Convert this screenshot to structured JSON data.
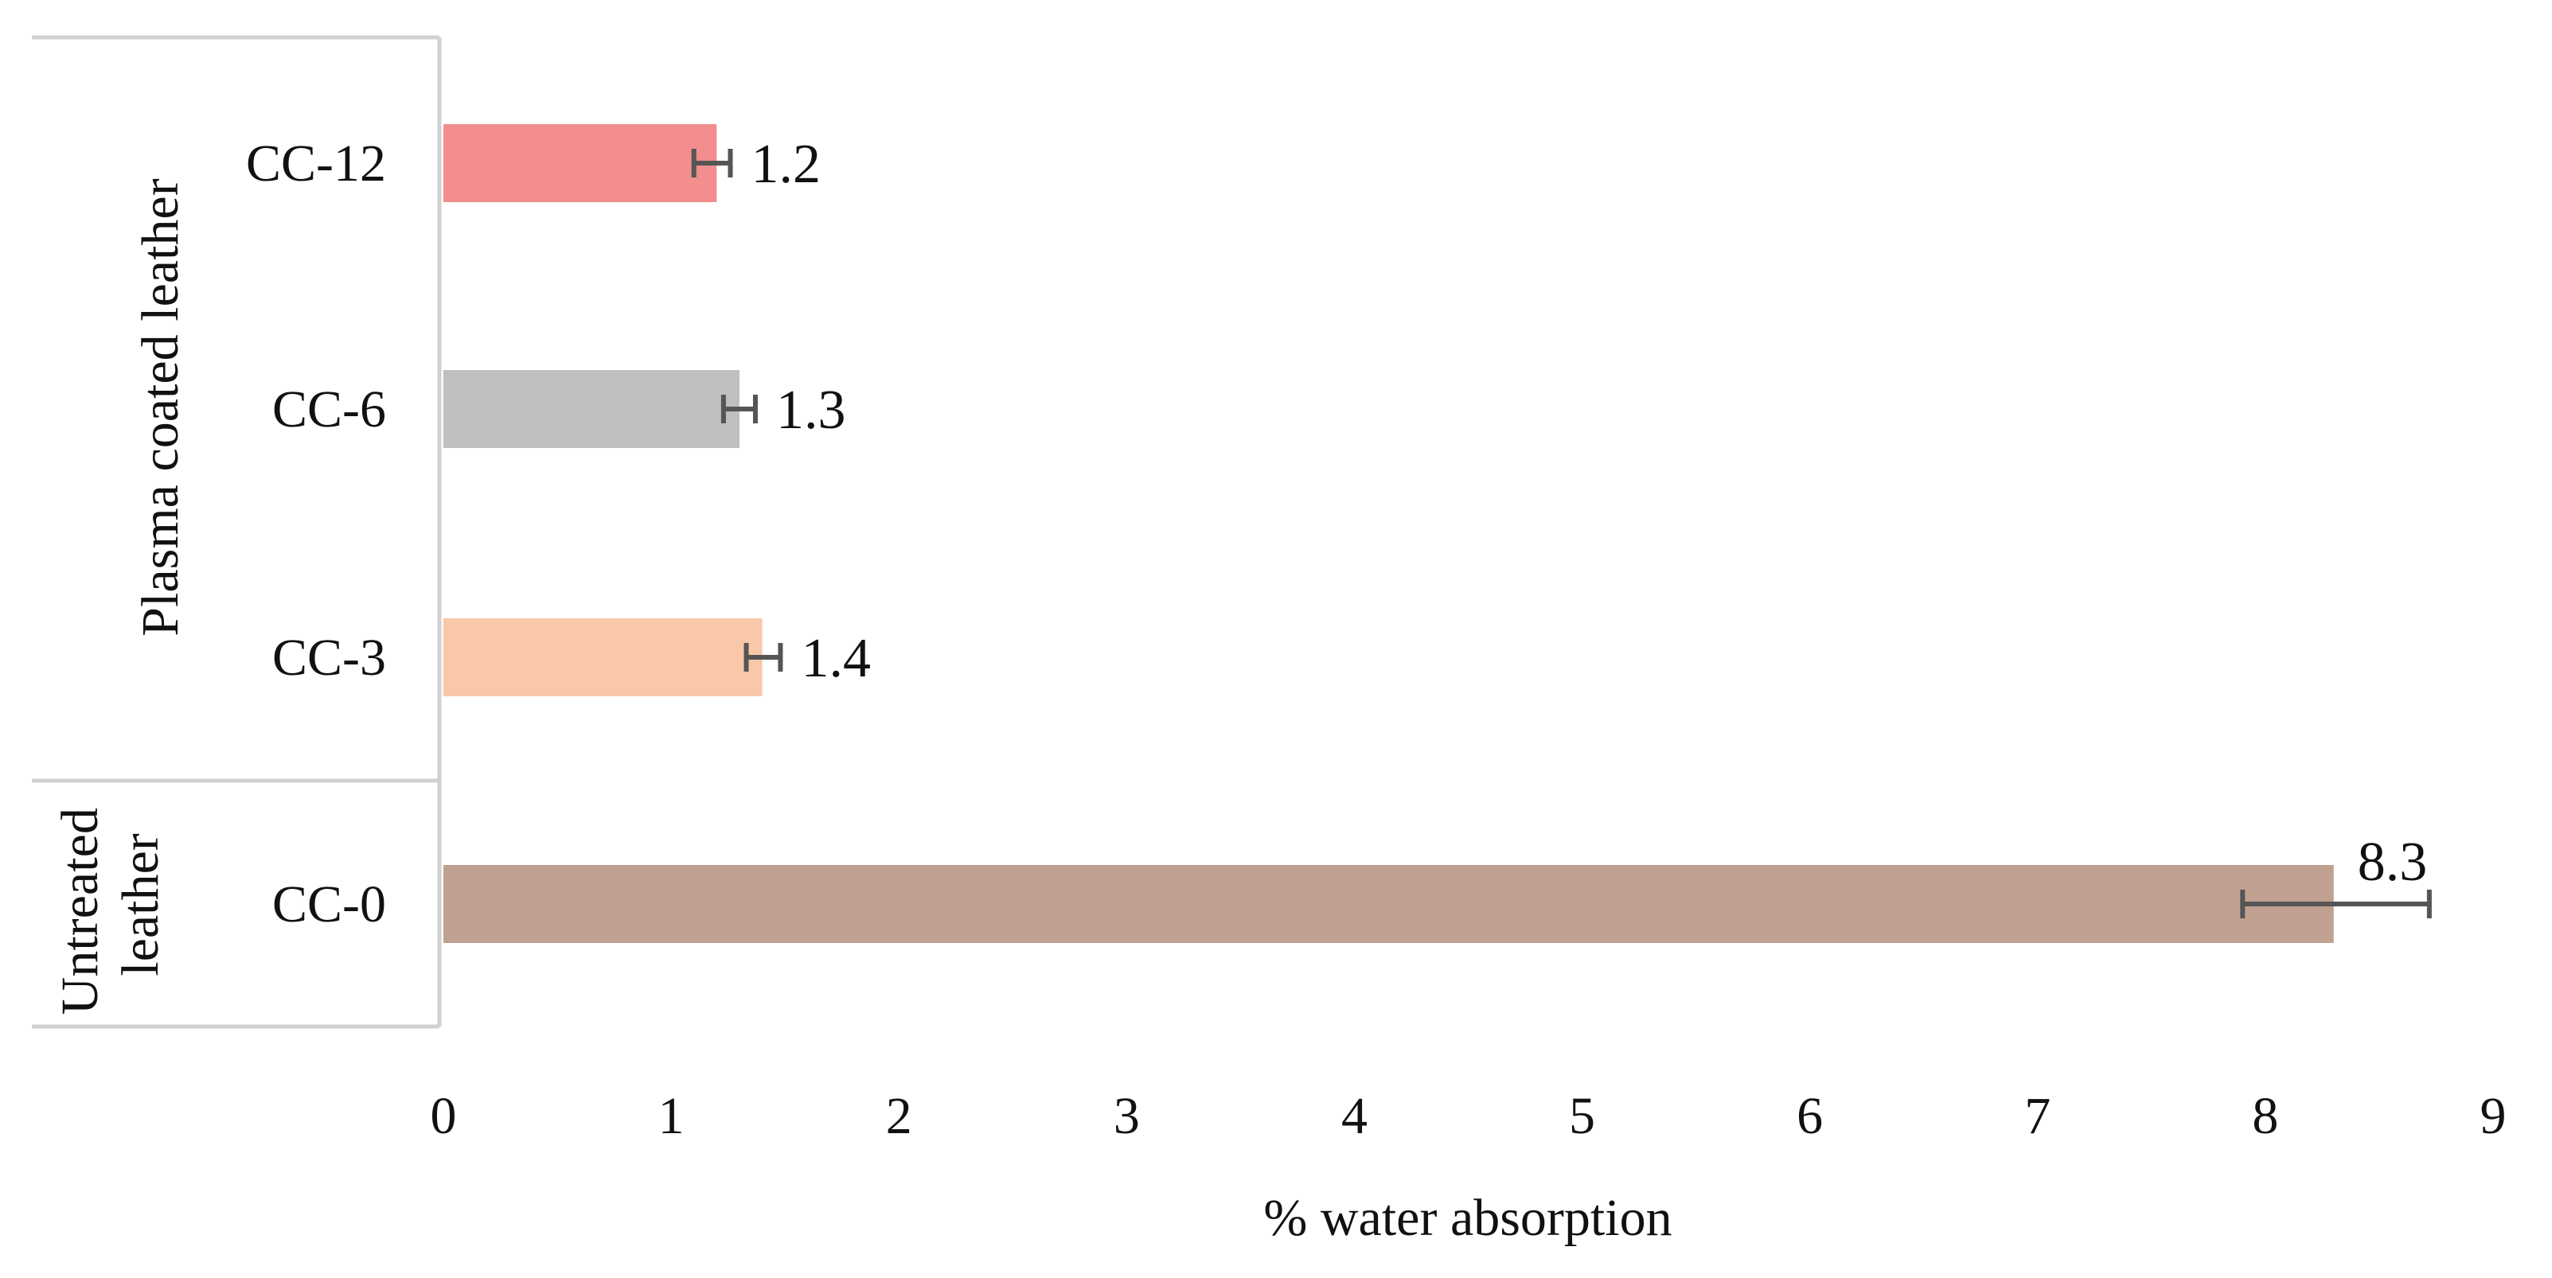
{
  "chart_data": {
    "type": "bar",
    "orientation": "horizontal",
    "xlabel": "% water absorption",
    "ylabel": "",
    "title": "",
    "xlim": [
      0,
      9
    ],
    "xticks": [
      "0",
      "1",
      "2",
      "3",
      "4",
      "5",
      "6",
      "7",
      "8",
      "9"
    ],
    "grid": false,
    "legend": "none",
    "groups": [
      {
        "label": "Plasma coated leather",
        "categories": [
          "CC-12",
          "CC-6",
          "CC-3"
        ]
      },
      {
        "label": "Untreated leather",
        "label_lines": [
          "Untreated",
          "leather"
        ],
        "categories": [
          "CC-0"
        ]
      }
    ],
    "bars": [
      {
        "category": "CC-12",
        "value": 1.2,
        "label": "1.2",
        "error_low": 1.1,
        "error_high": 1.26,
        "color": "#f28e8e"
      },
      {
        "category": "CC-6",
        "value": 1.3,
        "label": "1.3",
        "error_low": 1.23,
        "error_high": 1.37,
        "color": "#bfbfbf"
      },
      {
        "category": "CC-3",
        "value": 1.4,
        "label": "1.4",
        "error_low": 1.33,
        "error_high": 1.48,
        "color": "#f8c8a8"
      },
      {
        "category": "CC-0",
        "value": 8.3,
        "label": "8.3",
        "error_low": 7.9,
        "error_high": 8.72,
        "color": "#c0a191"
      }
    ]
  }
}
